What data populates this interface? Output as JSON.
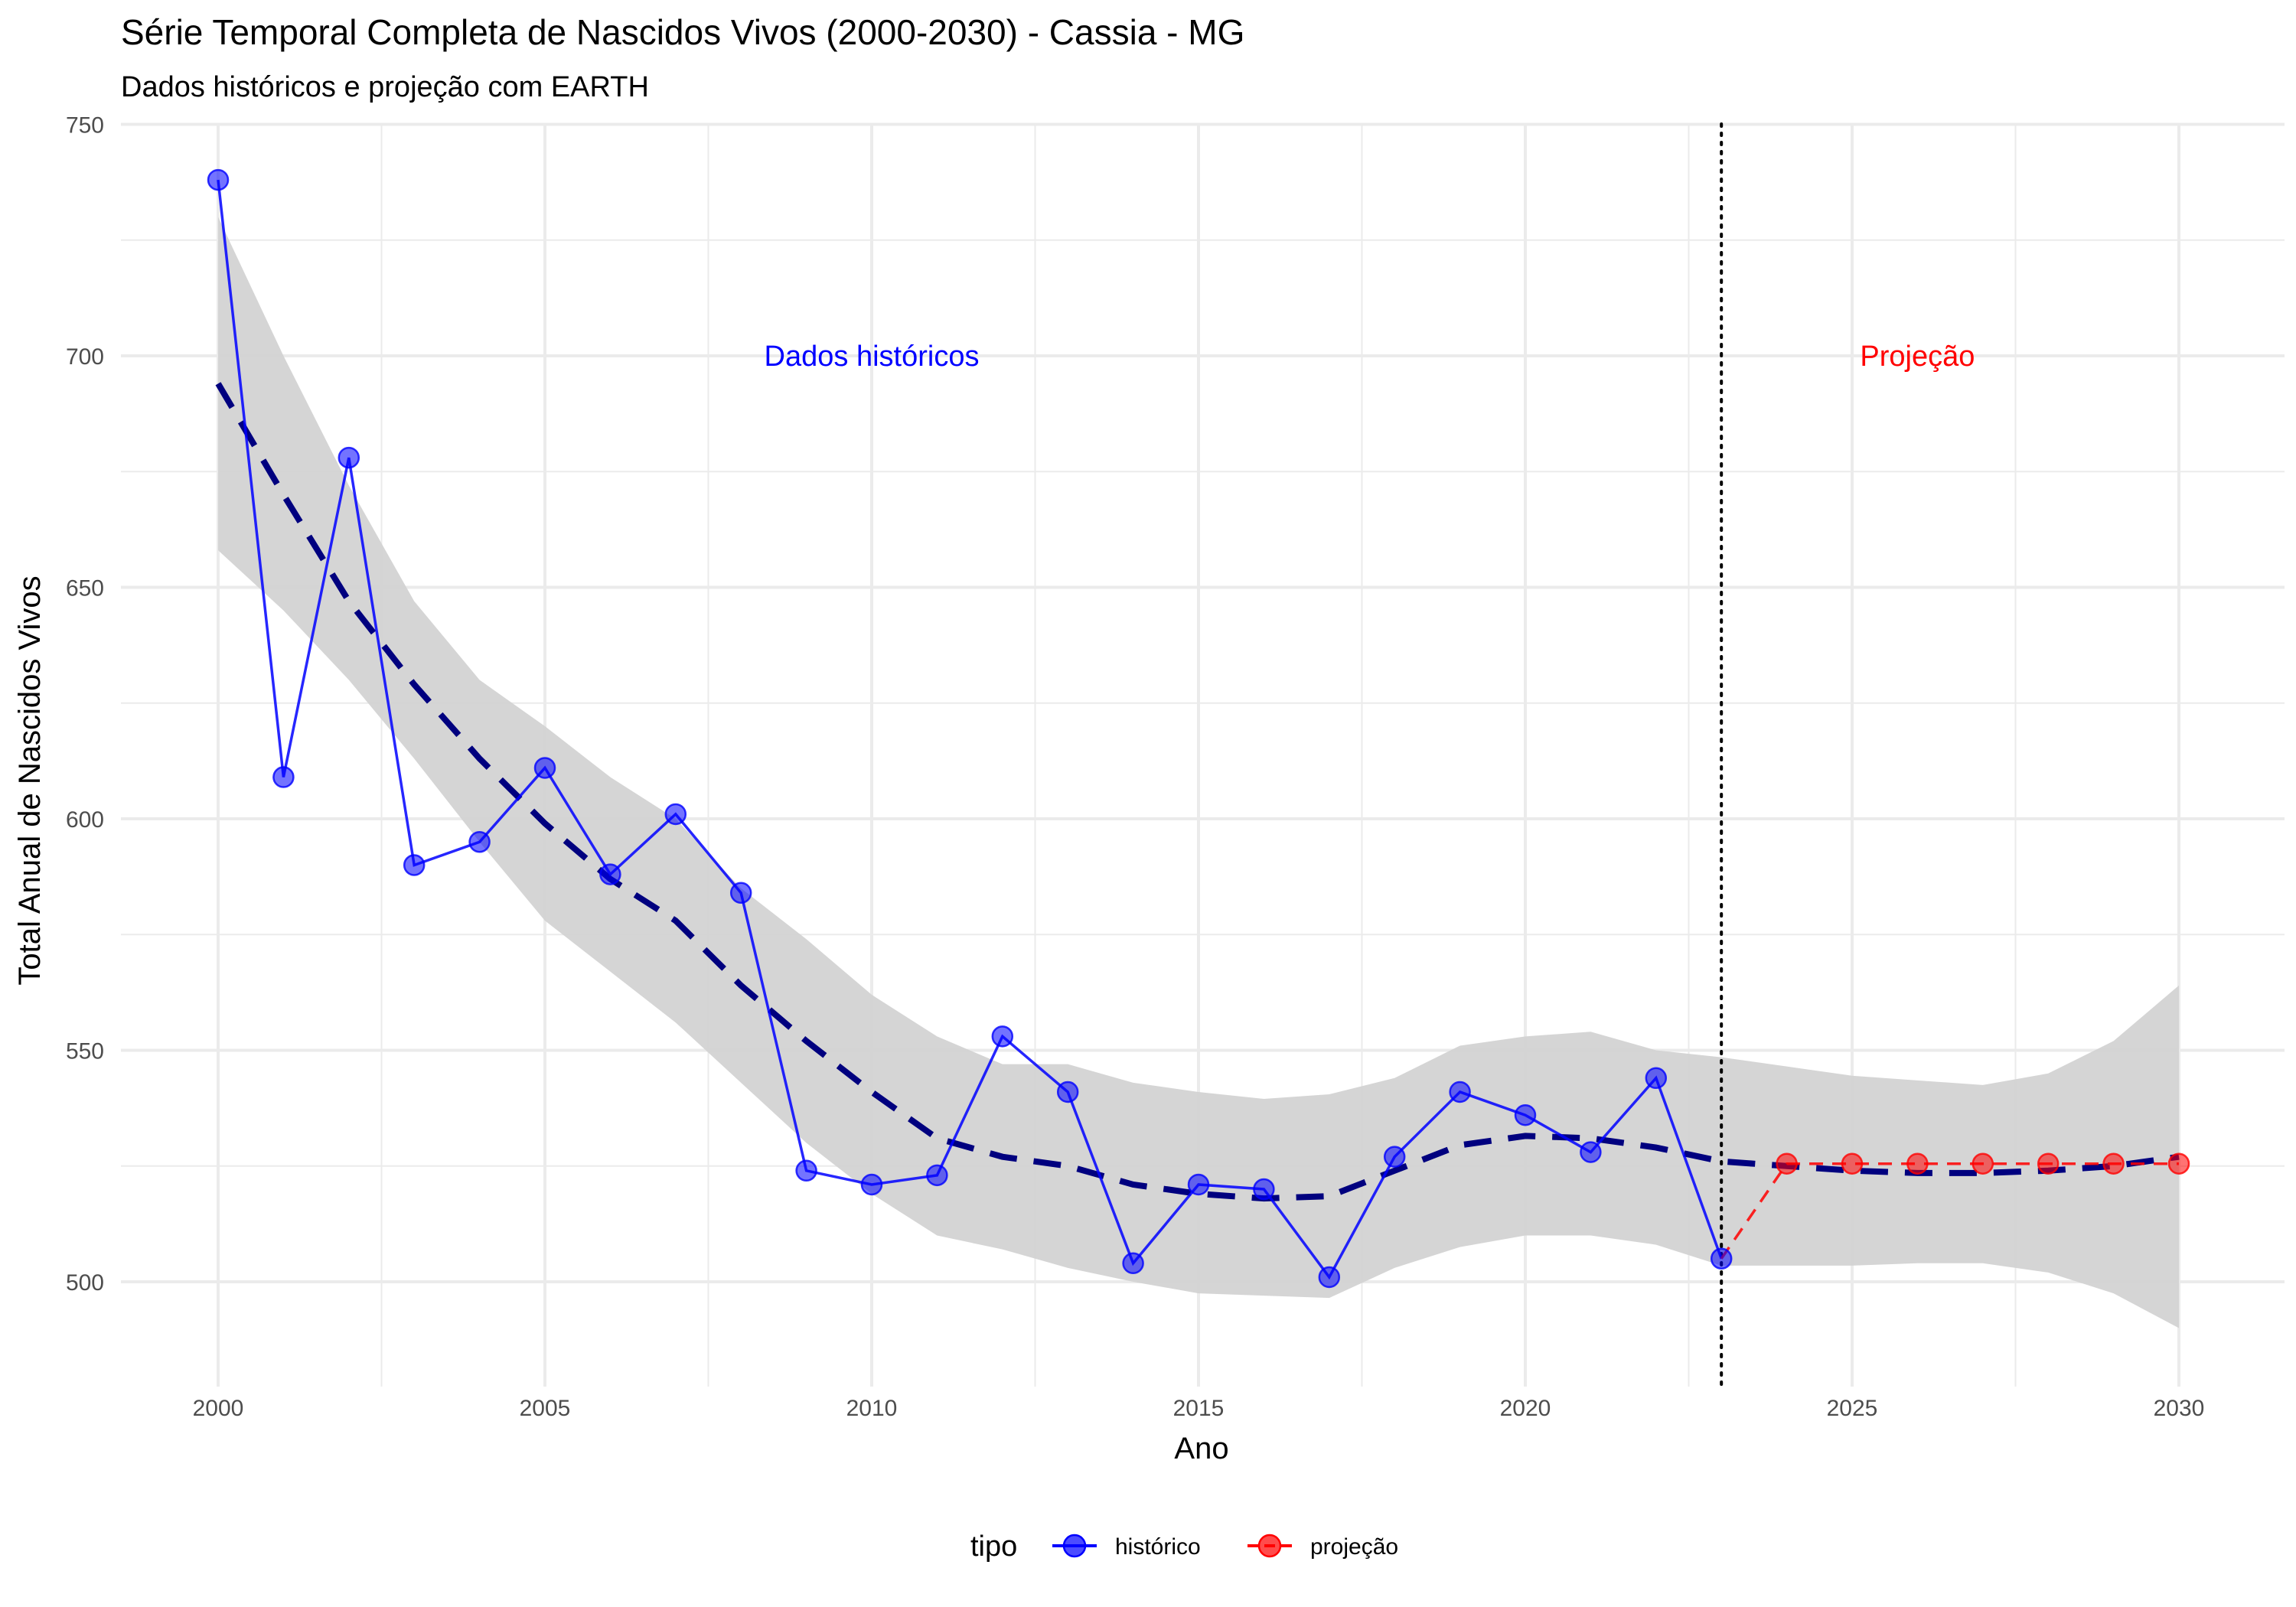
{
  "chart_data": {
    "type": "line",
    "title": "Série Temporal Completa de Nascidos Vivos (2000-2030) -  Cassia - MG",
    "subtitle": "Dados históricos e projeção com EARTH",
    "xlabel": "Ano",
    "ylabel": "Total Anual de Nascidos Vivos",
    "xlim": [
      1998.5,
      2031.5
    ],
    "ylim": [
      480,
      750
    ],
    "x_ticks": [
      2000,
      2005,
      2010,
      2015,
      2020,
      2025,
      2030
    ],
    "y_ticks": [
      500,
      550,
      600,
      650,
      700,
      750
    ],
    "grid": true,
    "legend": {
      "title": "tipo",
      "position": "bottom",
      "entries": [
        {
          "label": "histórico",
          "color": "#0000ff"
        },
        {
          "label": "projeção",
          "color": "#ff0000"
        }
      ]
    },
    "series": [
      {
        "name": "histórico",
        "color": "#0000ff",
        "line_style": "solid",
        "x": [
          2000,
          2001,
          2002,
          2003,
          2004,
          2005,
          2006,
          2007,
          2008,
          2009,
          2010,
          2011,
          2012,
          2013,
          2014,
          2015,
          2016,
          2017,
          2018,
          2019,
          2020,
          2021,
          2022,
          2023
        ],
        "y": [
          738,
          609,
          678,
          590,
          595,
          611,
          588,
          601,
          584,
          524,
          521,
          523,
          553,
          541,
          504,
          521,
          520,
          501,
          527,
          541,
          536,
          528,
          544,
          505
        ]
      },
      {
        "name": "projeção",
        "color": "#ff0000",
        "line_style": "dashed",
        "x": [
          2023,
          2024,
          2025,
          2026,
          2027,
          2028,
          2029,
          2030
        ],
        "y": [
          505,
          525.5,
          525.5,
          525.5,
          525.5,
          525.5,
          525.5,
          525.5
        ]
      }
    ],
    "trend": {
      "color": "#00007f",
      "line_style": "dashed",
      "x": [
        2000,
        2001,
        2002,
        2003,
        2004,
        2005,
        2006,
        2007,
        2008,
        2009,
        2010,
        2011,
        2012,
        2013,
        2014,
        2015,
        2016,
        2017,
        2018,
        2019,
        2020,
        2021,
        2022,
        2023,
        2024,
        2025,
        2026,
        2027,
        2028,
        2029,
        2030
      ],
      "y": [
        694,
        670,
        647,
        629,
        613,
        599,
        587,
        578,
        564,
        552,
        541,
        531,
        527,
        525,
        521,
        519,
        518,
        518.5,
        524,
        529.5,
        531.5,
        531,
        529,
        526,
        525,
        524,
        523.5,
        523.5,
        524,
        525,
        527
      ],
      "band_low": [
        658,
        645,
        630,
        613,
        595,
        578,
        567,
        556,
        543,
        530,
        519,
        510,
        507,
        503,
        500,
        497.5,
        497,
        496.5,
        503,
        507.5,
        510,
        510,
        508,
        503.5,
        503.5,
        503.5,
        504,
        504,
        502,
        497.5,
        490
      ],
      "band_high": [
        730,
        700,
        672,
        647,
        630,
        620,
        609,
        600,
        585,
        574,
        562,
        553,
        547,
        547,
        543,
        541,
        539.5,
        540.5,
        544,
        551,
        553,
        554,
        550,
        548.5,
        546.5,
        544.5,
        543.5,
        542.5,
        545,
        552,
        564
      ],
      "band_color": "#d3d3d3"
    },
    "vline": {
      "x": 2023,
      "style": "dotted",
      "color": "#000000"
    },
    "annotations": [
      {
        "text": "Dados históricos",
        "x": 2010,
        "y": 700,
        "color": "#0000ff"
      },
      {
        "text": "Projeção",
        "x": 2026,
        "y": 700,
        "color": "#ff0000"
      }
    ]
  }
}
